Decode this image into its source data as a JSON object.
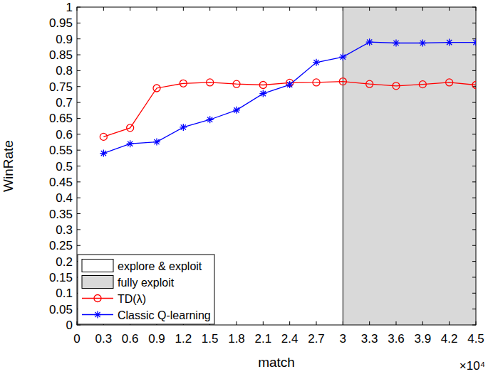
{
  "chart_data": {
    "type": "line",
    "x_label": "match",
    "y_label": "WinRate",
    "annotations": [
      "×10⁴"
    ],
    "x": [
      0.3,
      0.6,
      0.9,
      1.2,
      1.5,
      1.8,
      2.1,
      2.4,
      2.7,
      3,
      3.3,
      3.6,
      3.9,
      4.2,
      4.5
    ],
    "series": [
      {
        "name": "TD(λ)",
        "color": "#ff0000",
        "marker": "circle",
        "line_style": "solid",
        "values": [
          0.592,
          0.62,
          0.745,
          0.76,
          0.763,
          0.758,
          0.755,
          0.762,
          0.763,
          0.766,
          0.758,
          0.752,
          0.757,
          0.763,
          0.755
        ]
      },
      {
        "name": "Classic Q-learning",
        "color": "#0000ff",
        "marker": "star",
        "line_style": "solid",
        "values": [
          0.54,
          0.57,
          0.576,
          0.622,
          0.646,
          0.676,
          0.728,
          0.756,
          0.826,
          0.843,
          0.89,
          0.887,
          0.887,
          0.889,
          0.889
        ]
      }
    ],
    "regions": [
      {
        "label": "explore & exploit",
        "from": 0,
        "to": 3,
        "color": "#ffffff"
      },
      {
        "label": "fully exploit",
        "from": 3,
        "to": 4.5,
        "color": "#d9d9d9"
      }
    ],
    "xlim": [
      0,
      4.5
    ],
    "xticks": [
      0,
      0.3,
      0.6,
      0.9,
      1.2,
      1.5,
      1.8,
      2.1,
      2.4,
      2.7,
      3,
      3.3,
      3.6,
      3.9,
      4.2,
      4.5
    ],
    "ylim": [
      0,
      1
    ],
    "yticks": [
      0,
      0.05,
      0.1,
      0.15,
      0.2,
      0.25,
      0.3,
      0.35,
      0.4,
      0.45,
      0.5,
      0.55,
      0.6,
      0.65,
      0.7,
      0.75,
      0.8,
      0.85,
      0.9,
      0.95,
      1
    ],
    "grid": false,
    "legend": "lower left"
  }
}
